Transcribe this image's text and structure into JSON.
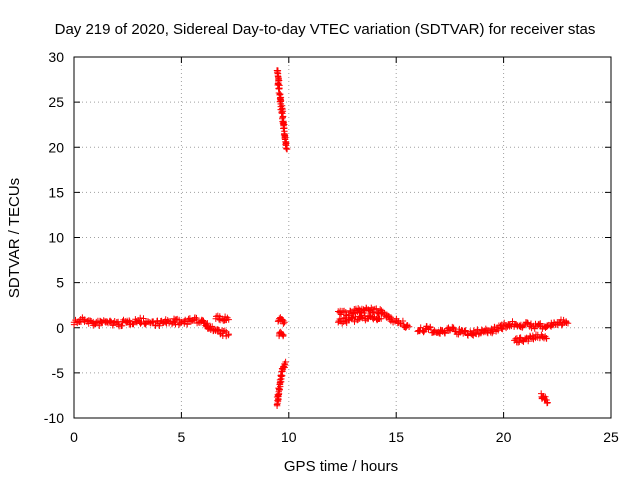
{
  "chart_data": {
    "type": "scatter",
    "title": "Day 219 of 2020, Sidereal Day-to-day VTEC variation (SDTVAR) for receiver stas",
    "xlabel": "GPS time / hours",
    "ylabel": "SDTVAR / TECUs",
    "xlim": [
      0,
      25
    ],
    "ylim": [
      -10,
      30
    ],
    "xticks": [
      0,
      5,
      10,
      15,
      20,
      25
    ],
    "yticks": [
      -10,
      -5,
      0,
      5,
      10,
      15,
      20,
      25,
      30
    ],
    "grid": true,
    "marker": "+",
    "marker_color": "#ff0000",
    "series": [
      {
        "name": "SDTVAR",
        "segments": [
          {
            "x": [
              0.0,
              0.5,
              1.0,
              1.5,
              2.0,
              2.5,
              3.0,
              3.5,
              4.0,
              4.5,
              5.0,
              5.5,
              6.0
            ],
            "y": [
              0.6,
              0.9,
              0.4,
              0.7,
              0.4,
              0.6,
              0.8,
              0.6,
              0.5,
              0.7,
              0.6,
              0.8,
              0.8
            ]
          },
          {
            "x": [
              6.0,
              6.3,
              6.6,
              6.9,
              7.2
            ],
            "y": [
              0.8,
              0.0,
              -0.3,
              -0.6,
              -0.7
            ]
          },
          {
            "x": [
              6.6,
              6.9,
              7.2
            ],
            "y": [
              1.0,
              1.0,
              0.9
            ]
          },
          {
            "x": [
              9.45,
              9.52,
              9.6,
              9.68,
              9.75,
              9.82,
              9.9
            ],
            "y": [
              28.5,
              27.0,
              25.5,
              24.0,
              22.5,
              21.0,
              19.8
            ]
          },
          {
            "x": [
              9.5,
              9.6,
              9.7,
              9.8
            ],
            "y": [
              0.7,
              0.8,
              0.9,
              0.6
            ]
          },
          {
            "x": [
              9.55,
              9.65,
              9.75
            ],
            "y": [
              -0.9,
              -0.6,
              -0.8
            ]
          },
          {
            "x": [
              9.45,
              9.5,
              9.55,
              9.6,
              9.65,
              9.7,
              9.75,
              9.8,
              9.85
            ],
            "y": [
              -8.5,
              -7.5,
              -6.8,
              -6.0,
              -5.4,
              -4.8,
              -4.3,
              -4.0,
              -3.8
            ]
          },
          {
            "x": [
              12.3,
              12.8,
              13.3,
              13.8,
              14.3,
              14.8,
              15.2,
              15.6
            ],
            "y": [
              1.8,
              1.5,
              2.0,
              1.9,
              1.7,
              1.0,
              0.5,
              0.1
            ]
          },
          {
            "x": [
              12.3,
              12.8,
              13.3,
              13.8,
              14.3
            ],
            "y": [
              0.6,
              0.9,
              1.0,
              1.2,
              1.0
            ]
          },
          {
            "x": [
              16.0,
              16.5,
              17.0,
              17.5,
              18.0,
              18.5,
              19.0,
              19.5
            ],
            "y": [
              -0.4,
              -0.1,
              -0.6,
              -0.2,
              -0.5,
              -0.7,
              -0.3,
              -0.4
            ]
          },
          {
            "x": [
              19.5,
              20.0,
              20.5,
              21.0,
              21.5,
              22.0,
              22.5,
              23.0
            ],
            "y": [
              -0.2,
              0.2,
              0.4,
              0.3,
              0.2,
              0.1,
              0.6,
              0.5
            ]
          },
          {
            "x": [
              20.5,
              21.0,
              21.5,
              22.0
            ],
            "y": [
              -1.4,
              -1.2,
              -1.0,
              -1.2
            ]
          },
          {
            "x": [
              21.75,
              21.85,
              21.95,
              22.05
            ],
            "y": [
              -7.3,
              -7.7,
              -8.0,
              -8.3
            ]
          }
        ]
      }
    ]
  }
}
